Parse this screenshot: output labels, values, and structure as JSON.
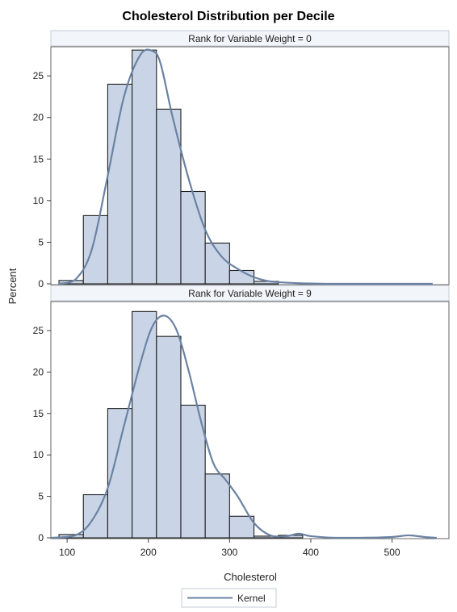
{
  "chart_data": {
    "type": "bar",
    "title": "Cholesterol Distribution per Decile",
    "xlabel": "Cholesterol",
    "ylabel": "Percent",
    "xlim": [
      80,
      570
    ],
    "ylim": [
      0,
      28.5
    ],
    "x_ticks": [
      100,
      200,
      300,
      400,
      500
    ],
    "y_ticks": [
      0,
      5,
      10,
      15,
      20,
      25
    ],
    "bin_width": 30,
    "legend": {
      "placement": "bottom",
      "entries": [
        "Kernel"
      ]
    },
    "colors": {
      "bar_fill": "#c9d5e6",
      "bar_stroke": "#1f1f1f",
      "kernel_line": "#6b82a3",
      "header_fill": "#f2f5fa"
    },
    "panels": [
      {
        "header": "Rank for Variable Weight = 0",
        "bins": [
          {
            "x": 105,
            "value": 0.4
          },
          {
            "x": 135,
            "value": 8.2
          },
          {
            "x": 165,
            "value": 24.0
          },
          {
            "x": 195,
            "value": 28.1
          },
          {
            "x": 225,
            "value": 21.0
          },
          {
            "x": 255,
            "value": 11.1
          },
          {
            "x": 285,
            "value": 4.9
          },
          {
            "x": 315,
            "value": 1.6
          },
          {
            "x": 345,
            "value": 0.3
          }
        ],
        "kernel": {
          "x": [
            90,
            110,
            130,
            150,
            170,
            190,
            205,
            215,
            230,
            250,
            270,
            290,
            310,
            330,
            350,
            380,
            420,
            460,
            500,
            550
          ],
          "y": [
            0,
            0.5,
            4,
            13,
            22.5,
            27.5,
            28,
            26.5,
            20,
            12.5,
            6.5,
            3.3,
            1.8,
            0.8,
            0.3,
            0.1,
            0,
            0,
            0,
            0
          ]
        }
      },
      {
        "header": "Rank for Variable Weight = 9",
        "bins": [
          {
            "x": 105,
            "value": 0.4
          },
          {
            "x": 135,
            "value": 5.2
          },
          {
            "x": 165,
            "value": 15.6
          },
          {
            "x": 195,
            "value": 27.3
          },
          {
            "x": 225,
            "value": 24.3
          },
          {
            "x": 255,
            "value": 16.0
          },
          {
            "x": 285,
            "value": 7.7
          },
          {
            "x": 315,
            "value": 2.6
          },
          {
            "x": 345,
            "value": 0.2
          },
          {
            "x": 375,
            "value": 0.3
          }
        ],
        "kernel": {
          "x": [
            80,
            110,
            130,
            150,
            170,
            190,
            205,
            220,
            235,
            250,
            265,
            280,
            295,
            310,
            330,
            350,
            370,
            385,
            400,
            430,
            460,
            500,
            520,
            540,
            555
          ],
          "y": [
            0,
            0.3,
            2,
            6,
            13.5,
            21,
            25.5,
            26.8,
            25,
            20,
            14,
            9,
            7,
            5,
            1.8,
            0.3,
            0.2,
            0.5,
            0.2,
            0,
            0,
            0.1,
            0.3,
            0.1,
            0
          ]
        }
      }
    ]
  }
}
